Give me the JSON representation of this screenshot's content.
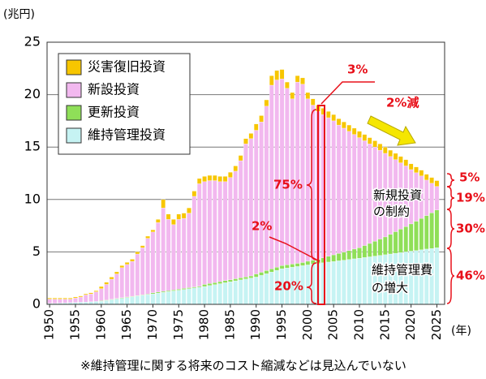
{
  "chart_data": {
    "type": "stacked-bar",
    "y_unit": "(兆円)",
    "x_unit": "(年)",
    "footnote": "※維持管理に関する将来のコスト縮減などは見込んでいない",
    "x": [
      1950,
      1951,
      1952,
      1953,
      1954,
      1955,
      1956,
      1957,
      1958,
      1959,
      1960,
      1961,
      1962,
      1963,
      1964,
      1965,
      1966,
      1967,
      1968,
      1969,
      1970,
      1971,
      1972,
      1973,
      1974,
      1975,
      1976,
      1977,
      1978,
      1979,
      1980,
      1981,
      1982,
      1983,
      1984,
      1985,
      1986,
      1987,
      1988,
      1989,
      1990,
      1991,
      1992,
      1993,
      1994,
      1995,
      1996,
      1997,
      1998,
      1999,
      2000,
      2001,
      2002,
      2003,
      2004,
      2005,
      2006,
      2007,
      2008,
      2009,
      2010,
      2011,
      2012,
      2013,
      2014,
      2015,
      2016,
      2017,
      2018,
      2019,
      2020,
      2021,
      2022,
      2023,
      2024,
      2025
    ],
    "xlim": [
      1949.5,
      2026.5
    ],
    "xticks": [
      1950,
      1955,
      1960,
      1965,
      1970,
      1975,
      1980,
      1985,
      1990,
      1995,
      2000,
      2005,
      2010,
      2015,
      2020,
      2025
    ],
    "ylim": [
      0,
      25
    ],
    "yticks": [
      0,
      5,
      10,
      15,
      20,
      25
    ],
    "grid": true,
    "legend": "upper left",
    "series": [
      {
        "name": "災害復旧投資",
        "color": "#f7c600",
        "values": [
          0.1,
          0.1,
          0.1,
          0.1,
          0.1,
          0.1,
          0.1,
          0.1,
          0.1,
          0.1,
          0.2,
          0.2,
          0.2,
          0.2,
          0.2,
          0.2,
          0.2,
          0.2,
          0.2,
          0.2,
          0.2,
          0.3,
          0.8,
          0.5,
          0.5,
          0.5,
          0.5,
          0.5,
          0.5,
          0.5,
          0.5,
          0.5,
          0.5,
          0.5,
          0.5,
          0.5,
          0.5,
          0.5,
          0.5,
          0.5,
          0.6,
          0.6,
          0.6,
          0.9,
          0.9,
          0.9,
          0.6,
          0.6,
          0.6,
          0.6,
          0.6,
          0.6,
          0.6,
          0.6,
          0.6,
          0.6,
          0.6,
          0.6,
          0.6,
          0.6,
          0.6,
          0.6,
          0.6,
          0.6,
          0.6,
          0.6,
          0.6,
          0.6,
          0.6,
          0.6,
          0.55,
          0.55,
          0.55,
          0.55,
          0.55,
          0.55
        ]
      },
      {
        "name": "新設投資",
        "color": "#f2b8ef",
        "values": [
          0.4,
          0.4,
          0.38,
          0.36,
          0.34,
          0.42,
          0.5,
          0.68,
          0.75,
          0.92,
          1.15,
          1.48,
          1.91,
          2.34,
          2.87,
          3.1,
          3.33,
          3.96,
          4.49,
          5.32,
          5.8,
          6.63,
          7.96,
          6.79,
          6.22,
          6.65,
          6.68,
          7.11,
          8.64,
          9.77,
          9.8,
          9.81,
          9.72,
          9.53,
          9.44,
          9.75,
          10.26,
          11.17,
          12.68,
          13.09,
          13.7,
          14.34,
          15.68,
          17.52,
          17.86,
          17.8,
          16.83,
          15.76,
          17.29,
          17.01,
          15.49,
          14.79,
          14.1,
          13.66,
          13.22,
          12.78,
          12.25,
          11.81,
          11.37,
          10.93,
          10.5,
          9.99,
          9.49,
          8.98,
          8.47,
          7.97,
          7.42,
          6.87,
          6.33,
          5.78,
          5.18,
          4.62,
          4.05,
          3.38,
          2.82,
          2.25
        ]
      },
      {
        "name": "更新投資",
        "color": "#8fdf58",
        "values": [
          0,
          0,
          0,
          0,
          0,
          0,
          0,
          0,
          0,
          0,
          0.05,
          0.05,
          0.05,
          0.05,
          0.05,
          0.05,
          0.05,
          0.05,
          0.05,
          0.05,
          0.1,
          0.1,
          0.1,
          0.1,
          0.1,
          0.1,
          0.1,
          0.1,
          0.1,
          0.1,
          0.2,
          0.2,
          0.2,
          0.2,
          0.2,
          0.2,
          0.2,
          0.2,
          0.2,
          0.2,
          0.3,
          0.3,
          0.3,
          0.3,
          0.3,
          0.3,
          0.3,
          0.3,
          0.3,
          0.3,
          0.35,
          0.38,
          0.4,
          0.48,
          0.55,
          0.63,
          0.7,
          0.78,
          0.85,
          0.93,
          1.0,
          1.14,
          1.28,
          1.42,
          1.56,
          1.7,
          1.88,
          2.06,
          2.24,
          2.42,
          2.6,
          2.8,
          3.0,
          3.2,
          3.4,
          3.6
        ]
      },
      {
        "name": "維持管理投資",
        "color": "#c6f3f3",
        "values": [
          0.1,
          0.1,
          0.12,
          0.14,
          0.16,
          0.18,
          0.2,
          0.22,
          0.25,
          0.28,
          0.3,
          0.37,
          0.44,
          0.51,
          0.58,
          0.65,
          0.72,
          0.79,
          0.86,
          0.93,
          1.0,
          1.07,
          1.14,
          1.21,
          1.28,
          1.35,
          1.42,
          1.49,
          1.56,
          1.63,
          1.7,
          1.79,
          1.88,
          1.97,
          2.06,
          2.15,
          2.24,
          2.33,
          2.42,
          2.51,
          2.6,
          2.76,
          2.92,
          3.08,
          3.24,
          3.4,
          3.47,
          3.54,
          3.61,
          3.69,
          3.76,
          3.83,
          3.9,
          3.96,
          4.03,
          4.09,
          4.15,
          4.21,
          4.28,
          4.34,
          4.4,
          4.47,
          4.53,
          4.6,
          4.67,
          4.73,
          4.8,
          4.87,
          4.93,
          5.0,
          5.07,
          5.13,
          5.2,
          5.27,
          5.33,
          5.4
        ]
      }
    ],
    "annotations": [
      "3%",
      "2%減",
      "75%",
      "2%",
      "20%",
      "新規投資",
      "の制約",
      "維持管理費",
      "の増大",
      "5%",
      "19%",
      "30%",
      "46%"
    ]
  }
}
